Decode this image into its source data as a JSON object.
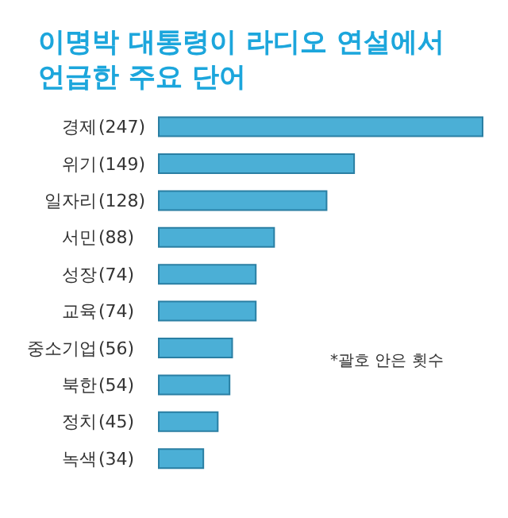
{
  "chart_data": {
    "type": "bar",
    "orientation": "horizontal",
    "title": "이명박 대통령이 라디오 연설에서 언급한 주요 단어",
    "categories": [
      "경제",
      "위기",
      "일자리",
      "서민",
      "성장",
      "교육",
      "중소기업",
      "북한",
      "정치",
      "녹색"
    ],
    "values": [
      247,
      149,
      128,
      88,
      74,
      74,
      56,
      54,
      45,
      34
    ],
    "value_labels": [
      "(247)",
      "(149)",
      "(128)",
      "(88)",
      "(74)",
      "(74)",
      "(56)",
      "(54)",
      "(45)",
      "(34)"
    ],
    "color": "#4bafd6",
    "annotations": [
      "*괄호 안은 횟수"
    ]
  }
}
